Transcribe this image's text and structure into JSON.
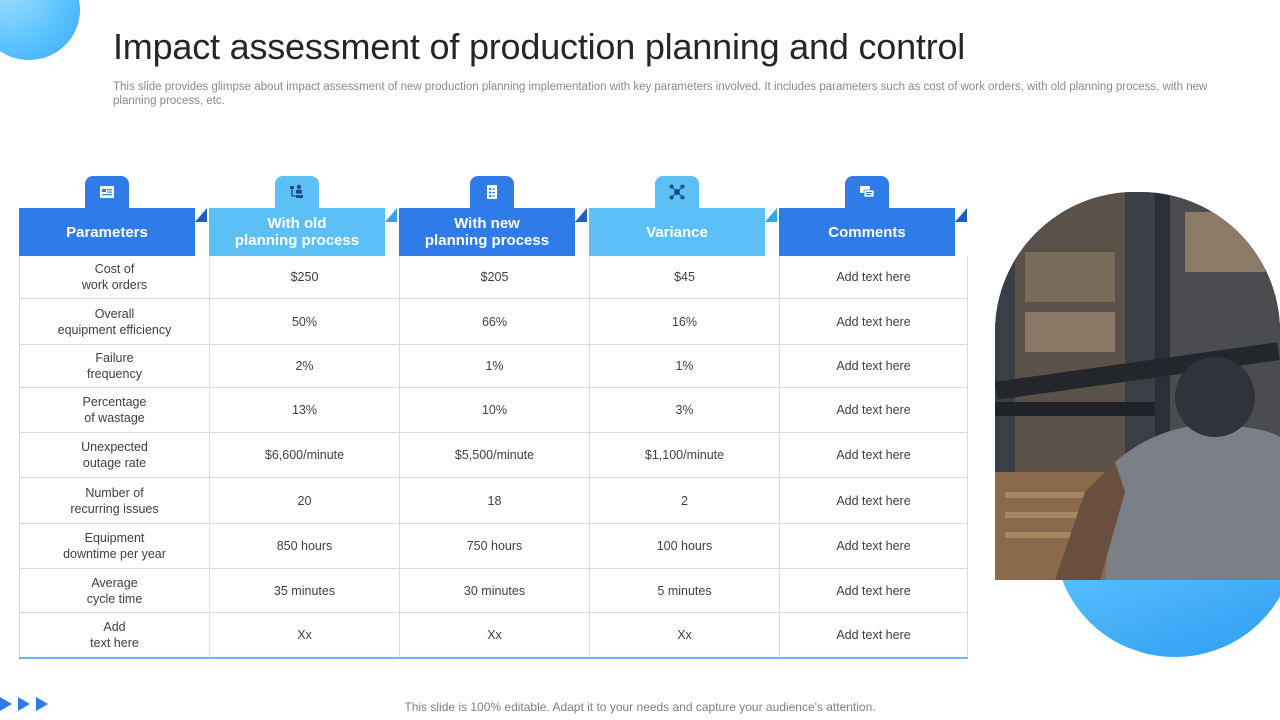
{
  "title": "Impact assessment of production planning and control",
  "subtitle": "This slide provides glimpse about impact assessment of new production planning implementation with key parameters involved. It includes parameters such as cost of work orders, with old planning process, with new planning process, etc.",
  "table": {
    "columns": [
      {
        "label": "Parameters",
        "icon": "document-icon",
        "style": "dark"
      },
      {
        "label": "With old\nplanning process",
        "icon": "org-chart-icon",
        "style": "light"
      },
      {
        "label": "With new\nplanning process",
        "icon": "checklist-icon",
        "style": "dark"
      },
      {
        "label": "Variance",
        "icon": "network-icon",
        "style": "light"
      },
      {
        "label": "Comments",
        "icon": "chat-icon",
        "style": "dark"
      }
    ],
    "rows": [
      {
        "param": "Cost of\nwork orders",
        "old": "$250",
        "new": "$205",
        "variance": "$45",
        "comment": "Add text here"
      },
      {
        "param": "Overall\nequipment efficiency",
        "old": "50%",
        "new": "66%",
        "variance": "16%",
        "comment": "Add text here"
      },
      {
        "param": "Failure\nfrequency",
        "old": "2%",
        "new": "1%",
        "variance": "1%",
        "comment": "Add text here"
      },
      {
        "param": "Percentage\nof wastage",
        "old": "13%",
        "new": "10%",
        "variance": "3%",
        "comment": "Add text here"
      },
      {
        "param": "Unexpected\noutage rate",
        "old": "$6,600/minute",
        "new": "$5,500/minute",
        "variance": "$1,100/minute",
        "comment": "Add text here"
      },
      {
        "param": "Number of\nrecurring issues",
        "old": "20",
        "new": "18",
        "variance": "2",
        "comment": "Add text here"
      },
      {
        "param": "Equipment\ndowntime per year",
        "old": "850 hours",
        "new": "750 hours",
        "variance": "100 hours",
        "comment": "Add text here"
      },
      {
        "param": "Average\ncycle time",
        "old": "35 minutes",
        "new": "30 minutes",
        "variance": "5 minutes",
        "comment": "Add text here"
      },
      {
        "param": "Add\ntext here",
        "old": "Xx",
        "new": "Xx",
        "variance": "Xx",
        "comment": "Add text here"
      }
    ]
  },
  "footer": "This slide is 100% editable. Adapt it to your needs and capture your audience's attention.",
  "colors": {
    "dark_blue": "#2f7ce8",
    "light_blue": "#5cc0f7",
    "accent": "#3ba8f5"
  }
}
